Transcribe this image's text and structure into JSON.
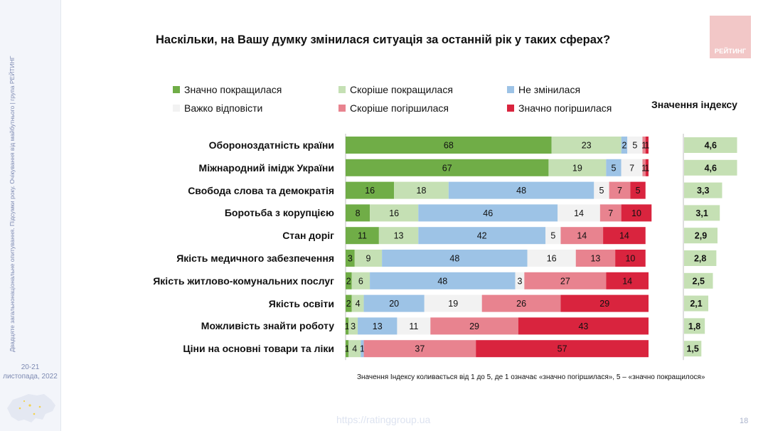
{
  "sidebar": {
    "text": "Двадцяте загальнонаціональне опитування. Підсумки року. Очікування від майбутнього | група РЕЙТИНГ",
    "date_line1": "20-21",
    "date_line2": "листопада, 2022"
  },
  "title": "Наскільки, на Вашу думку змінилася ситуація за останній рік у таких сферах?",
  "logo": "РЕЙТИНГ",
  "index_title": "Значення індексу",
  "footnote": "Значення Індексу коливається від 1 до 5, де 1 означає «значно погіршилася», 5 – «значно покращилося»",
  "url": "https://ratinggroup.ua",
  "page_number": "18",
  "colors": {
    "significantly_improved": "#70ad47",
    "rather_improved": "#c5e0b4",
    "unchanged": "#9dc3e6",
    "hard_to_say": "#f2f2f2",
    "rather_worsened": "#e8838f",
    "significantly_worsened": "#d9243e",
    "index_bar": "#c5e0b4"
  },
  "chart_data": {
    "type": "bar",
    "orientation": "horizontal",
    "stacked": true,
    "title": "Наскільки, на Вашу думку змінилася ситуація за останній рік у таких сферах?",
    "categories": [
      "Обороноздатність країни",
      "Міжнародний імідж України",
      "Свобода слова та демократія",
      "Боротьба з корупцією",
      "Стан доріг",
      "Якість медичного забезпечення",
      "Якість житлово-комунальних послуг",
      "Якість освіти",
      "Можливість знайти роботу",
      "Ціни на основні товари та ліки"
    ],
    "series": [
      {
        "name": "Значно покращилася",
        "values": [
          68,
          67,
          16,
          8,
          11,
          3,
          2,
          2,
          1,
          1
        ]
      },
      {
        "name": "Скоріше покращилася",
        "values": [
          23,
          19,
          18,
          16,
          13,
          9,
          6,
          4,
          3,
          4
        ]
      },
      {
        "name": "Не змінилася",
        "values": [
          2,
          5,
          48,
          46,
          42,
          48,
          48,
          20,
          13,
          1
        ]
      },
      {
        "name": "Важко відповісти",
        "values": [
          5,
          7,
          5,
          14,
          5,
          16,
          3,
          19,
          11,
          0
        ]
      },
      {
        "name": "Скоріше погіршилася",
        "values": [
          1,
          1,
          7,
          7,
          14,
          13,
          27,
          26,
          29,
          37
        ]
      },
      {
        "name": "Значно погіршилася",
        "values": [
          1,
          1,
          5,
          10,
          14,
          10,
          14,
          29,
          43,
          57
        ]
      }
    ],
    "index": {
      "title": "Значення індексу",
      "values": [
        4.6,
        4.6,
        3.3,
        3.1,
        2.9,
        2.8,
        2.5,
        2.1,
        1.8,
        1.5
      ],
      "labels": [
        "4,6",
        "4,6",
        "3,3",
        "3,1",
        "2,9",
        "2,8",
        "2,5",
        "2,1",
        "1,8",
        "1,5"
      ],
      "range": [
        1,
        5
      ]
    },
    "xlim": [
      0,
      100
    ],
    "legend": "top"
  }
}
